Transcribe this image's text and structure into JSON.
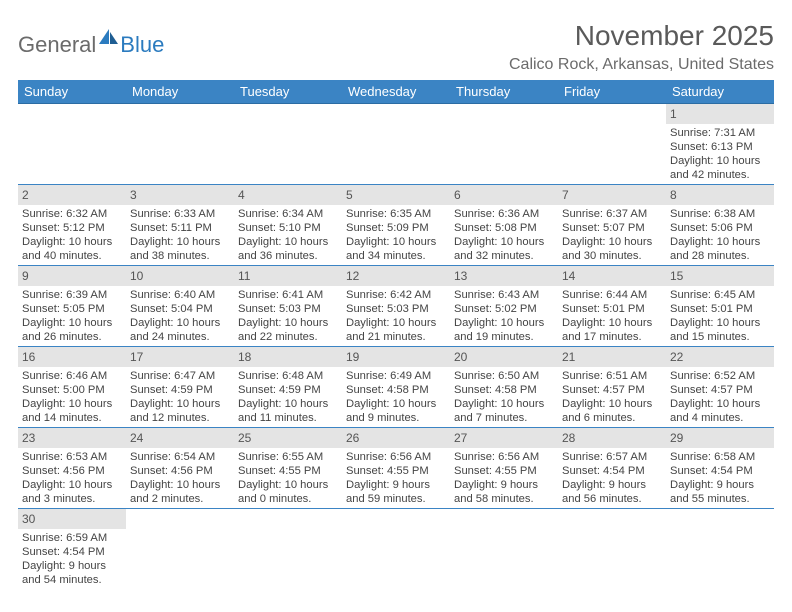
{
  "logo": {
    "text1": "General",
    "text2": "Blue"
  },
  "title": "November 2025",
  "location": "Calico Rock, Arkansas, United States",
  "colors": {
    "header_bg": "#3b84c4",
    "header_text": "#ffffff",
    "daynum_bg": "#e4e4e4",
    "cell_border": "#3b84c4",
    "body_text": "#444444",
    "title_text": "#5a5a5a"
  },
  "weekdays": [
    "Sunday",
    "Monday",
    "Tuesday",
    "Wednesday",
    "Thursday",
    "Friday",
    "Saturday"
  ],
  "weeks": [
    [
      null,
      null,
      null,
      null,
      null,
      null,
      {
        "n": "1",
        "sr": "Sunrise: 7:31 AM",
        "ss": "Sunset: 6:13 PM",
        "d1": "Daylight: 10 hours",
        "d2": "and 42 minutes."
      }
    ],
    [
      {
        "n": "2",
        "sr": "Sunrise: 6:32 AM",
        "ss": "Sunset: 5:12 PM",
        "d1": "Daylight: 10 hours",
        "d2": "and 40 minutes."
      },
      {
        "n": "3",
        "sr": "Sunrise: 6:33 AM",
        "ss": "Sunset: 5:11 PM",
        "d1": "Daylight: 10 hours",
        "d2": "and 38 minutes."
      },
      {
        "n": "4",
        "sr": "Sunrise: 6:34 AM",
        "ss": "Sunset: 5:10 PM",
        "d1": "Daylight: 10 hours",
        "d2": "and 36 minutes."
      },
      {
        "n": "5",
        "sr": "Sunrise: 6:35 AM",
        "ss": "Sunset: 5:09 PM",
        "d1": "Daylight: 10 hours",
        "d2": "and 34 minutes."
      },
      {
        "n": "6",
        "sr": "Sunrise: 6:36 AM",
        "ss": "Sunset: 5:08 PM",
        "d1": "Daylight: 10 hours",
        "d2": "and 32 minutes."
      },
      {
        "n": "7",
        "sr": "Sunrise: 6:37 AM",
        "ss": "Sunset: 5:07 PM",
        "d1": "Daylight: 10 hours",
        "d2": "and 30 minutes."
      },
      {
        "n": "8",
        "sr": "Sunrise: 6:38 AM",
        "ss": "Sunset: 5:06 PM",
        "d1": "Daylight: 10 hours",
        "d2": "and 28 minutes."
      }
    ],
    [
      {
        "n": "9",
        "sr": "Sunrise: 6:39 AM",
        "ss": "Sunset: 5:05 PM",
        "d1": "Daylight: 10 hours",
        "d2": "and 26 minutes."
      },
      {
        "n": "10",
        "sr": "Sunrise: 6:40 AM",
        "ss": "Sunset: 5:04 PM",
        "d1": "Daylight: 10 hours",
        "d2": "and 24 minutes."
      },
      {
        "n": "11",
        "sr": "Sunrise: 6:41 AM",
        "ss": "Sunset: 5:03 PM",
        "d1": "Daylight: 10 hours",
        "d2": "and 22 minutes."
      },
      {
        "n": "12",
        "sr": "Sunrise: 6:42 AM",
        "ss": "Sunset: 5:03 PM",
        "d1": "Daylight: 10 hours",
        "d2": "and 21 minutes."
      },
      {
        "n": "13",
        "sr": "Sunrise: 6:43 AM",
        "ss": "Sunset: 5:02 PM",
        "d1": "Daylight: 10 hours",
        "d2": "and 19 minutes."
      },
      {
        "n": "14",
        "sr": "Sunrise: 6:44 AM",
        "ss": "Sunset: 5:01 PM",
        "d1": "Daylight: 10 hours",
        "d2": "and 17 minutes."
      },
      {
        "n": "15",
        "sr": "Sunrise: 6:45 AM",
        "ss": "Sunset: 5:01 PM",
        "d1": "Daylight: 10 hours",
        "d2": "and 15 minutes."
      }
    ],
    [
      {
        "n": "16",
        "sr": "Sunrise: 6:46 AM",
        "ss": "Sunset: 5:00 PM",
        "d1": "Daylight: 10 hours",
        "d2": "and 14 minutes."
      },
      {
        "n": "17",
        "sr": "Sunrise: 6:47 AM",
        "ss": "Sunset: 4:59 PM",
        "d1": "Daylight: 10 hours",
        "d2": "and 12 minutes."
      },
      {
        "n": "18",
        "sr": "Sunrise: 6:48 AM",
        "ss": "Sunset: 4:59 PM",
        "d1": "Daylight: 10 hours",
        "d2": "and 11 minutes."
      },
      {
        "n": "19",
        "sr": "Sunrise: 6:49 AM",
        "ss": "Sunset: 4:58 PM",
        "d1": "Daylight: 10 hours",
        "d2": "and 9 minutes."
      },
      {
        "n": "20",
        "sr": "Sunrise: 6:50 AM",
        "ss": "Sunset: 4:58 PM",
        "d1": "Daylight: 10 hours",
        "d2": "and 7 minutes."
      },
      {
        "n": "21",
        "sr": "Sunrise: 6:51 AM",
        "ss": "Sunset: 4:57 PM",
        "d1": "Daylight: 10 hours",
        "d2": "and 6 minutes."
      },
      {
        "n": "22",
        "sr": "Sunrise: 6:52 AM",
        "ss": "Sunset: 4:57 PM",
        "d1": "Daylight: 10 hours",
        "d2": "and 4 minutes."
      }
    ],
    [
      {
        "n": "23",
        "sr": "Sunrise: 6:53 AM",
        "ss": "Sunset: 4:56 PM",
        "d1": "Daylight: 10 hours",
        "d2": "and 3 minutes."
      },
      {
        "n": "24",
        "sr": "Sunrise: 6:54 AM",
        "ss": "Sunset: 4:56 PM",
        "d1": "Daylight: 10 hours",
        "d2": "and 2 minutes."
      },
      {
        "n": "25",
        "sr": "Sunrise: 6:55 AM",
        "ss": "Sunset: 4:55 PM",
        "d1": "Daylight: 10 hours",
        "d2": "and 0 minutes."
      },
      {
        "n": "26",
        "sr": "Sunrise: 6:56 AM",
        "ss": "Sunset: 4:55 PM",
        "d1": "Daylight: 9 hours",
        "d2": "and 59 minutes."
      },
      {
        "n": "27",
        "sr": "Sunrise: 6:56 AM",
        "ss": "Sunset: 4:55 PM",
        "d1": "Daylight: 9 hours",
        "d2": "and 58 minutes."
      },
      {
        "n": "28",
        "sr": "Sunrise: 6:57 AM",
        "ss": "Sunset: 4:54 PM",
        "d1": "Daylight: 9 hours",
        "d2": "and 56 minutes."
      },
      {
        "n": "29",
        "sr": "Sunrise: 6:58 AM",
        "ss": "Sunset: 4:54 PM",
        "d1": "Daylight: 9 hours",
        "d2": "and 55 minutes."
      }
    ],
    [
      {
        "n": "30",
        "sr": "Sunrise: 6:59 AM",
        "ss": "Sunset: 4:54 PM",
        "d1": "Daylight: 9 hours",
        "d2": "and 54 minutes."
      },
      null,
      null,
      null,
      null,
      null,
      null
    ]
  ]
}
